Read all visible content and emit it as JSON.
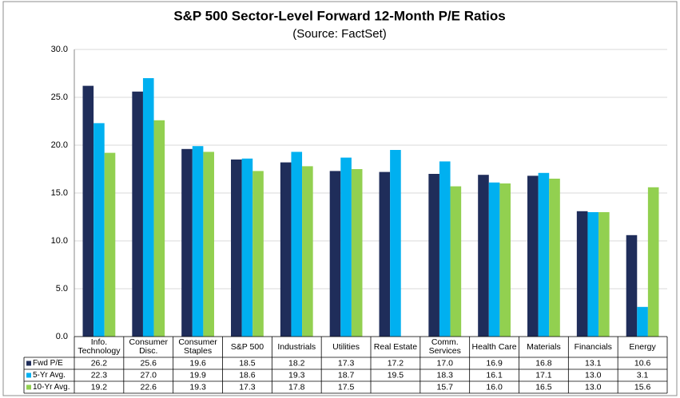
{
  "chart_data": {
    "type": "bar",
    "title": "S&P 500 Sector-Level Forward 12-Month P/E Ratios",
    "subtitle": "(Source: FactSet)",
    "categories": [
      "Info. Technology",
      "Consumer Disc.",
      "Consumer Staples",
      "S&P 500",
      "Industrials",
      "Utilities",
      "Real Estate",
      "Comm. Services",
      "Health Care",
      "Materials",
      "Financials",
      "Energy"
    ],
    "series": [
      {
        "name": "Fwd P/E",
        "color": "#1f2d5a",
        "values": [
          26.2,
          25.6,
          19.6,
          18.5,
          18.2,
          17.3,
          17.2,
          17.0,
          16.9,
          16.8,
          13.1,
          10.6
        ],
        "value_labels": [
          "26.2",
          "25.6",
          "19.6",
          "18.5",
          "18.2",
          "17.3",
          "17.2",
          "17.0",
          "16.9",
          "16.8",
          "13.1",
          "10.6"
        ]
      },
      {
        "name": "5-Yr Avg.",
        "color": "#00b0f0",
        "values": [
          22.3,
          27.0,
          19.9,
          18.6,
          19.3,
          18.7,
          19.5,
          18.3,
          16.1,
          17.1,
          13.0,
          3.1
        ],
        "value_labels": [
          "22.3",
          "27.0",
          "19.9",
          "18.6",
          "19.3",
          "18.7",
          "19.5",
          "18.3",
          "16.1",
          "17.1",
          "13.0",
          "3.1"
        ]
      },
      {
        "name": "10-Yr Avg.",
        "color": "#92d050",
        "values": [
          19.2,
          22.6,
          19.3,
          17.3,
          17.8,
          17.5,
          null,
          15.7,
          16.0,
          16.5,
          13.0,
          15.6
        ],
        "value_labels": [
          "19.2",
          "22.6",
          "19.3",
          "17.3",
          "17.8",
          "17.5",
          null,
          "15.7",
          "16.0",
          "16.5",
          "13.0",
          "15.6"
        ]
      }
    ],
    "ylim": [
      0,
      30
    ],
    "yticks": [
      {
        "value": 0,
        "label": "0.0"
      },
      {
        "value": 5,
        "label": "5.0"
      },
      {
        "value": 10,
        "label": "10.0"
      },
      {
        "value": 15,
        "label": "15.0"
      },
      {
        "value": 20,
        "label": "20.0"
      },
      {
        "value": 25,
        "label": "25.0"
      },
      {
        "value": 30,
        "label": "30.0"
      }
    ],
    "grid": true
  }
}
